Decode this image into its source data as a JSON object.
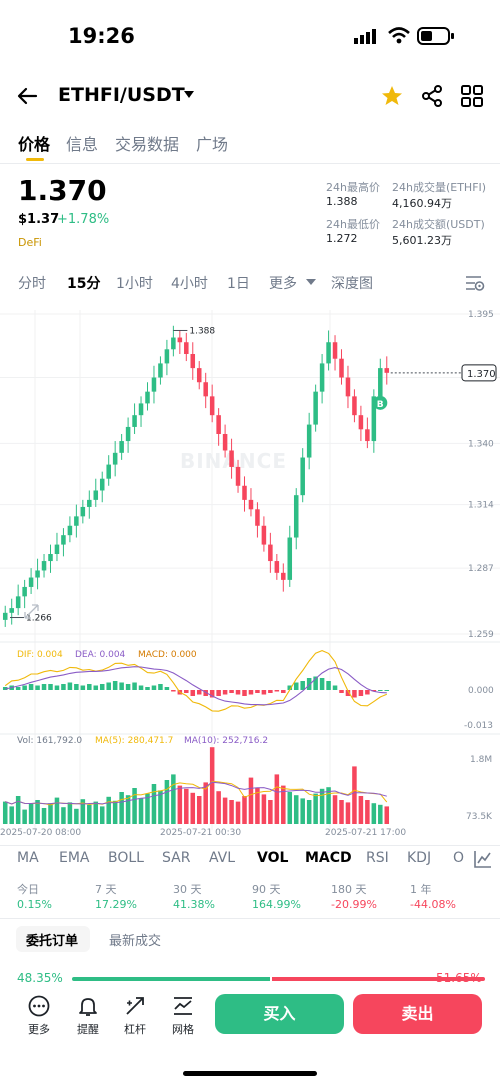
{
  "status": {
    "time": "19:26"
  },
  "header": {
    "pair": "ETHFI/USDT"
  },
  "tabs": [
    "价格",
    "信息",
    "交易数据",
    "广场"
  ],
  "ticker": {
    "last_price": "1.370",
    "usd_price": "$1.37",
    "change": "+1.78%",
    "tag": "DeFi",
    "high_label": "24h最高价",
    "high_value": "1.388",
    "low_label": "24h最低价",
    "low_value": "1.272",
    "vol_label": "24h成交量(ETHFI)",
    "vol_value": "4,160.94万",
    "amount_label": "24h成交额(USDT)",
    "amount_value": "5,601.23万"
  },
  "timeframes": [
    "分时",
    "15分",
    "1小时",
    "4小时",
    "1日",
    "更多",
    "深度图"
  ],
  "chart_data": {
    "type": "candlestick",
    "price_ticks": [
      "1.395",
      "1.368",
      "1.340",
      "1.314",
      "1.287",
      "1.259"
    ],
    "price_tick_values": [
      1.395,
      1.368,
      1.34,
      1.314,
      1.287,
      1.259
    ],
    "current_price_label": "1.370",
    "high_marker": "1.388",
    "low_marker": "1.266",
    "watermark": "BINANCE",
    "buy_marker": "B",
    "closes": [
      1.268,
      1.27,
      1.275,
      1.279,
      1.283,
      1.286,
      1.29,
      1.293,
      1.297,
      1.301,
      1.305,
      1.309,
      1.313,
      1.316,
      1.32,
      1.325,
      1.331,
      1.336,
      1.341,
      1.347,
      1.352,
      1.357,
      1.362,
      1.368,
      1.374,
      1.38,
      1.385,
      1.383,
      1.378,
      1.372,
      1.366,
      1.36,
      1.352,
      1.344,
      1.337,
      1.33,
      1.322,
      1.316,
      1.312,
      1.305,
      1.297,
      1.29,
      1.285,
      1.282,
      1.3,
      1.318,
      1.334,
      1.348,
      1.362,
      1.374,
      1.383,
      1.376,
      1.368,
      1.36,
      1.352,
      1.346,
      1.341,
      1.36,
      1.372,
      1.37
    ],
    "macd": {
      "dif_label": "DIF: 0.004",
      "dea_label": "DEA: 0.004",
      "macd_label": "MACD: 0.000",
      "ticks": [
        "0.000",
        "-0.013"
      ],
      "hist": [
        0.002,
        0.003,
        0.002,
        0.003,
        0.004,
        0.003,
        0.004,
        0.004,
        0.003,
        0.004,
        0.005,
        0.004,
        0.003,
        0.004,
        0.003,
        0.004,
        0.005,
        0.006,
        0.005,
        0.004,
        0.005,
        0.003,
        0.002,
        0.003,
        0.004,
        0.002,
        -0.001,
        -0.003,
        -0.002,
        -0.004,
        -0.003,
        -0.004,
        -0.005,
        -0.004,
        -0.003,
        -0.002,
        -0.003,
        -0.004,
        -0.003,
        -0.002,
        -0.003,
        -0.002,
        -0.001,
        -0.002,
        0.003,
        0.005,
        0.006,
        0.008,
        0.009,
        0.008,
        0.006,
        0.003,
        -0.002,
        -0.004,
        -0.005,
        -0.004,
        -0.003,
        -0.001,
        0.0,
        0.0
      ]
    },
    "volume": {
      "vol_label": "Vol: 161,792.0",
      "ma5_label": "MA(5): 280,471.7",
      "ma10_label": "MA(10): 252,716.2",
      "ticks": [
        "1.8M",
        "73.5K"
      ],
      "values": [
        0.28,
        0.22,
        0.35,
        0.18,
        0.25,
        0.3,
        0.2,
        0.26,
        0.33,
        0.21,
        0.27,
        0.19,
        0.31,
        0.24,
        0.28,
        0.22,
        0.34,
        0.29,
        0.4,
        0.36,
        0.45,
        0.32,
        0.38,
        0.5,
        0.42,
        0.55,
        0.62,
        0.48,
        0.44,
        0.39,
        0.35,
        0.52,
        0.96,
        0.41,
        0.33,
        0.3,
        0.28,
        0.35,
        0.58,
        0.45,
        0.37,
        0.3,
        0.62,
        0.48,
        0.4,
        0.36,
        0.32,
        0.3,
        0.38,
        0.44,
        0.46,
        0.36,
        0.3,
        0.27,
        0.72,
        0.35,
        0.3,
        0.26,
        0.24,
        0.22
      ]
    },
    "x_ticks": [
      "2025-07-20 08:00",
      "2025-07-21 00:30",
      "2025-07-21 17:00"
    ]
  },
  "indicator_tabs": [
    "MA",
    "EMA",
    "BOLL",
    "SAR",
    "AVL",
    "VOL",
    "MACD",
    "RSI",
    "KDJ",
    "O"
  ],
  "performance": [
    {
      "label": "今日",
      "value": "0.15%",
      "color": "#2ebd85"
    },
    {
      "label": "7 天",
      "value": "17.29%",
      "color": "#2ebd85"
    },
    {
      "label": "30 天",
      "value": "41.38%",
      "color": "#2ebd85"
    },
    {
      "label": "90 天",
      "value": "164.99%",
      "color": "#2ebd85"
    },
    {
      "label": "180 天",
      "value": "-20.99%",
      "color": "#f6465d"
    },
    {
      "label": "1 年",
      "value": "-44.08%",
      "color": "#f6465d"
    }
  ],
  "order_tabs": [
    "委托订单",
    "最新成交"
  ],
  "ratio": {
    "buy": "48.35%",
    "sell": "51.65%",
    "buy_fraction": 0.4835
  },
  "toolbar": {
    "items": [
      "更多",
      "提醒",
      "杠杆",
      "网格"
    ],
    "buy_label": "买入",
    "sell_label": "卖出"
  },
  "colors": {
    "up": "#2ebd85",
    "down": "#f6465d",
    "accent": "#f0b90b"
  }
}
